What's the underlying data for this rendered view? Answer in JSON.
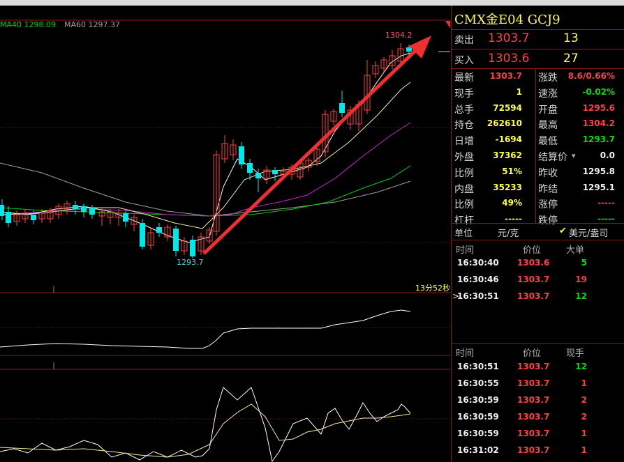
{
  "chart": {
    "ma40_label": "MA40 1298.09",
    "ma60_label": "MA60 1297.37",
    "high_label": "1304.2",
    "low_label": "1293.7",
    "timer_label": "13分52秒",
    "colors": {
      "ma40": "#00d000",
      "ma60": "#a0a0a0",
      "up": "#ff4040",
      "down": "#00e8e8",
      "arrow": "#f03030"
    }
  },
  "panel": {
    "title": "CMX金E04  GCJ9",
    "sell": {
      "label": "卖出",
      "price": "1303.7",
      "qty": "13"
    },
    "buy": {
      "label": "买入",
      "price": "1303.6",
      "qty": "27"
    },
    "stats": [
      {
        "l1": "最新",
        "v1": "1303.7",
        "c1": "red",
        "l2": "涨跌",
        "v2": "8.6/0.66%",
        "c2": "red"
      },
      {
        "l1": "现手",
        "v1": "1",
        "c1": "yellow",
        "l2": "速涨",
        "v2": "-0.02%",
        "c2": "green"
      },
      {
        "l1": "总手",
        "v1": "72594",
        "c1": "yellow",
        "l2": "开盘",
        "v2": "1295.6",
        "c2": "red"
      },
      {
        "l1": "持仓",
        "v1": "262610",
        "c1": "yellow",
        "l2": "最高",
        "v2": "1304.2",
        "c2": "red"
      },
      {
        "l1": "日增",
        "v1": "-1694",
        "c1": "yellow",
        "l2": "最低",
        "v2": "1293.7",
        "c2": "green"
      },
      {
        "l1": "外盘",
        "v1": "37362",
        "c1": "yellow",
        "l2": "结算价",
        "v2": "0.0",
        "c2": "white"
      },
      {
        "l1": "比例",
        "v1": "51%",
        "c1": "yellow",
        "l2": "昨收",
        "v2": "1295.8",
        "c2": "white"
      },
      {
        "l1": "内盘",
        "v1": "35233",
        "c1": "yellow",
        "l2": "昨结",
        "v2": "1295.1",
        "c2": "white"
      },
      {
        "l1": "比例",
        "v1": "49%",
        "c1": "yellow",
        "l2": "涨停",
        "v2": "-----",
        "c2": "red"
      },
      {
        "l1": "杠杆",
        "v1": "-----",
        "c1": "yellow",
        "l2": "跌停",
        "v2": "-----",
        "c2": "green"
      }
    ],
    "unit": {
      "label": "单位",
      "opt1": "元/克",
      "opt2": "美元/盎司"
    },
    "ticks1": {
      "headers": [
        "时间",
        "价位",
        "大单"
      ],
      "rows": [
        {
          "time": "16:30:40",
          "price": "1303.6",
          "qty": "5",
          "qc": "green"
        },
        {
          "time": "16:30:46",
          "price": "1303.7",
          "qty": "19",
          "qc": "red"
        },
        {
          "time": "16:30:51",
          "price": "1303.7",
          "qty": "12",
          "qc": "green"
        }
      ]
    },
    "ticks2": {
      "headers": [
        "时间",
        "价位",
        "现手"
      ],
      "rows": [
        {
          "time": "16:30:51",
          "price": "1303.7",
          "qty": "12",
          "qc": "green"
        },
        {
          "time": "16:30:55",
          "price": "1303.7",
          "qty": "1",
          "qc": "red"
        },
        {
          "time": "16:30:59",
          "price": "1303.7",
          "qty": "2",
          "qc": "red"
        },
        {
          "time": "16:30:59",
          "price": "1303.7",
          "qty": "2",
          "qc": "red"
        },
        {
          "time": "16:30:59",
          "price": "1303.7",
          "qty": "1",
          "qc": "red"
        },
        {
          "time": "16:31:02",
          "price": "1303.7",
          "qty": "1",
          "qc": "red"
        }
      ]
    }
  }
}
